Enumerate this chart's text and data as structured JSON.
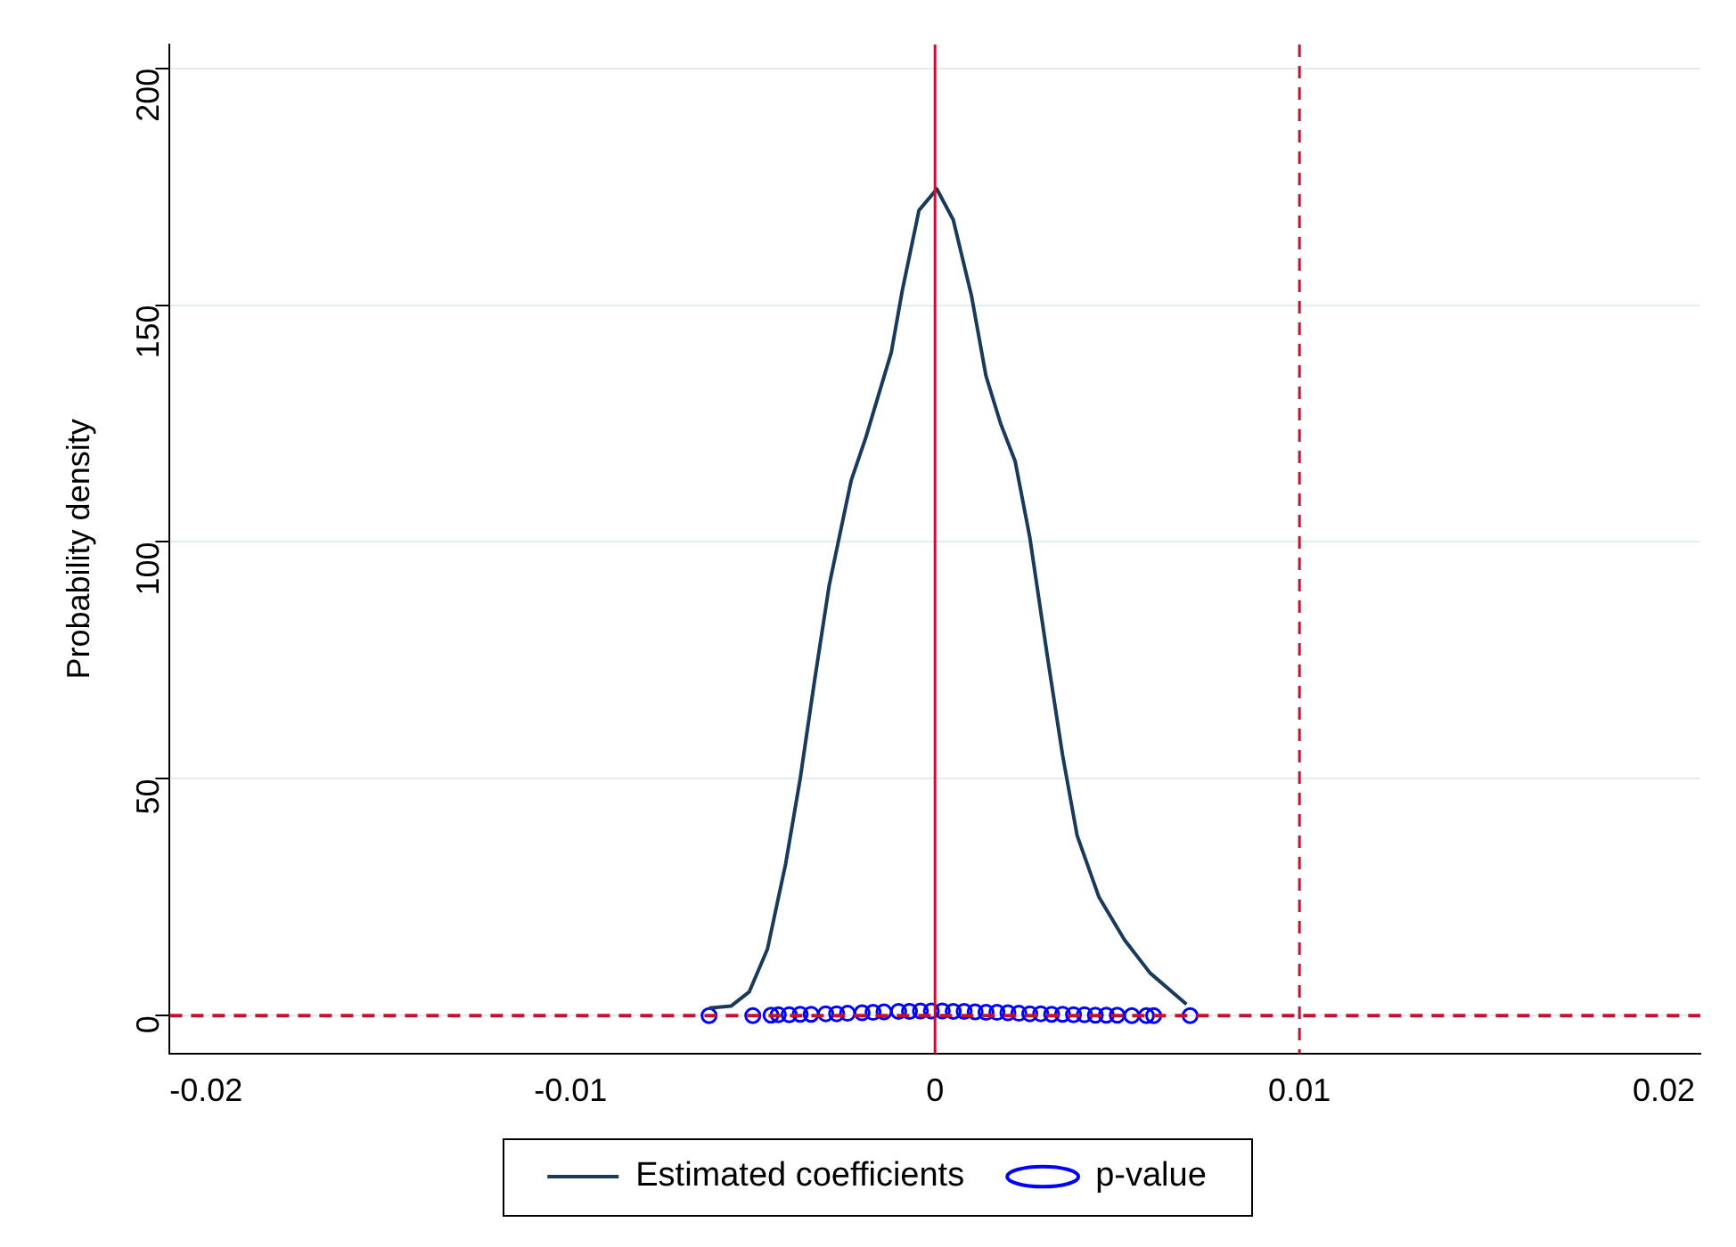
{
  "chart_data": {
    "type": "line",
    "ylabel": "Probability density",
    "xlim": [
      -0.021,
      0.021
    ],
    "xticks": [
      -0.02,
      -0.01,
      0,
      0.01,
      0.02
    ],
    "ylim": [
      -8,
      205
    ],
    "yticks": [
      0,
      50,
      100,
      150,
      200
    ],
    "grid": "y",
    "legend": "bottom",
    "series": [
      {
        "name": "Estimated coefficients",
        "color": "#1a3a5c",
        "marker": "none",
        "line_style": "solid",
        "x": [
          -0.0062,
          -0.0056,
          -0.0051,
          -0.0046,
          -0.0041,
          -0.0037,
          -0.0033,
          -0.0029,
          -0.0023,
          -0.0019,
          -0.0012,
          -0.0009,
          -0.00044,
          5e-05,
          0.0005,
          0.001,
          0.0014,
          0.0018,
          0.0022,
          0.0026,
          0.0031,
          0.0035,
          0.0039,
          0.0045,
          0.0052,
          0.0059,
          0.0069
        ],
        "values": [
          1.6,
          2,
          5,
          14,
          32,
          50,
          71,
          91,
          113,
          122,
          140,
          153,
          170,
          174.5,
          168,
          152,
          135,
          125,
          117,
          101,
          75,
          55,
          38,
          25,
          16,
          9,
          2.4
        ]
      },
      {
        "name": "p-value",
        "type": "scatter",
        "color": "#0000ff",
        "marker": "circle",
        "x": [
          -0.0062,
          -0.005,
          -0.0045,
          -0.0043,
          -0.004,
          -0.0037,
          -0.0034,
          -0.003,
          -0.0027,
          -0.0024,
          -0.002,
          -0.0017,
          -0.0014,
          -0.001,
          -0.0007,
          -0.0004,
          -0.0001,
          0.0002,
          0.0005,
          0.0008,
          0.0011,
          0.0014,
          0.0017,
          0.002,
          0.0023,
          0.0026,
          0.0029,
          0.0032,
          0.0035,
          0.0038,
          0.0041,
          0.0044,
          0.0047,
          0.005,
          0.0054,
          0.0058,
          0.006,
          0.007
        ],
        "values": [
          0,
          0,
          0.1,
          0.2,
          0.2,
          0.3,
          0.3,
          0.4,
          0.4,
          0.5,
          0.6,
          0.7,
          0.8,
          0.9,
          0.9,
          1,
          1,
          1,
          0.9,
          0.9,
          0.8,
          0.7,
          0.7,
          0.6,
          0.5,
          0.4,
          0.4,
          0.3,
          0.3,
          0.2,
          0.2,
          0.1,
          0.1,
          0.1,
          0,
          0,
          0,
          0
        ]
      }
    ],
    "ref_lines": [
      {
        "axis": "x",
        "value": 0,
        "color": "#c8102e",
        "line_style": "solid"
      },
      {
        "axis": "x",
        "value": 0.01,
        "color": "#c8102e",
        "line_style": "dashed"
      },
      {
        "axis": "y",
        "value": 0,
        "color": "#c8102e",
        "line_style": "dashed"
      }
    ]
  }
}
